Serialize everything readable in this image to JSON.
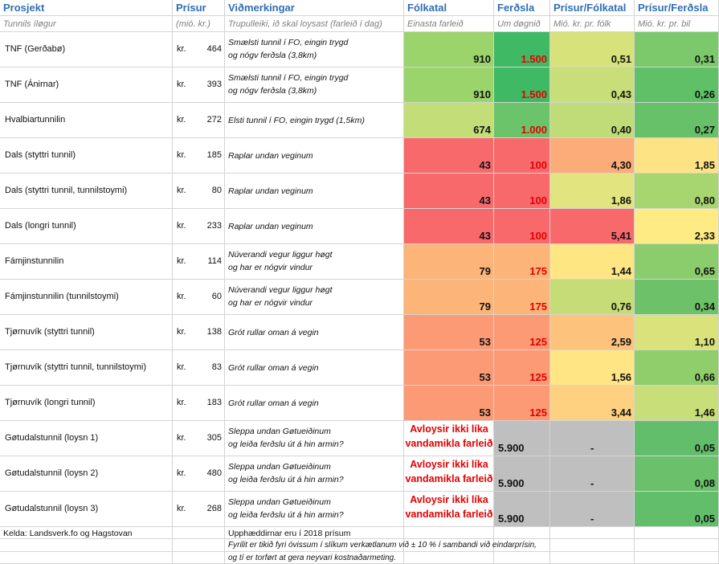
{
  "header": [
    "Prosjekt",
    "Prísur",
    "Viðmerkingar",
    "Fólkatal",
    "Ferðsla",
    "Prísur/Fólkatal",
    "Prísur/Ferðsla"
  ],
  "subheader": [
    "Tunnils íløgur",
    "(mió. kr.)",
    "Trupulleiki, ið skal loysast (farleið í dag)",
    "Einasta farleið",
    "Um døgnið",
    "Mió. kr. pr. fólk",
    "Mió. kr. pr. bil"
  ],
  "rows": [
    {
      "name": "TNF (Gerðabø)",
      "currency": "kr.",
      "price": "464",
      "note": [
        "Smælsti tunnil í FO, eingin trygd",
        "og nógv ferðsla (3,8km)"
      ],
      "folk": "910",
      "traffic": "1.500",
      "per_person": "0,51",
      "per_vehicle": "0,31"
    },
    {
      "name": "TNF (Ánirnar)",
      "currency": "kr.",
      "price": "393",
      "note": [
        "Smælsti tunnil í FO, eingin trygd",
        "og nógv ferðsla (3,8km)"
      ],
      "folk": "910",
      "traffic": "1.500",
      "per_person": "0,43",
      "per_vehicle": "0,26"
    },
    {
      "name": "Hvalbiartunnilin",
      "currency": "kr.",
      "price": "272",
      "note": [
        "Elsti tunnil í FO, eingin trygd (1,5km)"
      ],
      "folk": "674",
      "traffic": "1.000",
      "per_person": "0,40",
      "per_vehicle": "0,27"
    },
    {
      "name": "Dals (styttri tunnil)",
      "currency": "kr.",
      "price": "185",
      "note": [
        "Raplar undan veginum"
      ],
      "folk": "43",
      "traffic": "100",
      "per_person": "4,30",
      "per_vehicle": "1,85"
    },
    {
      "name": "Dals (styttri tunnil, tunnilstoymi)",
      "currency": "kr.",
      "price": "80",
      "note": [
        "Raplar undan veginum"
      ],
      "folk": "43",
      "traffic": "100",
      "per_person": "1,86",
      "per_vehicle": "0,80"
    },
    {
      "name": "Dals (longri tunnil)",
      "currency": "kr.",
      "price": "233",
      "note": [
        "Raplar undan veginum"
      ],
      "folk": "43",
      "traffic": "100",
      "per_person": "5,41",
      "per_vehicle": "2,33"
    },
    {
      "name": "Fámjinstunnilin",
      "currency": "kr.",
      "price": "114",
      "note": [
        "Núverandi vegur liggur høgt",
        "og har er nógvir vindur"
      ],
      "folk": "79",
      "traffic": "175",
      "per_person": "1,44",
      "per_vehicle": "0,65"
    },
    {
      "name": "Fámjinstunnilin (tunnilstoymi)",
      "currency": "kr.",
      "price": "60",
      "note": [
        "Núverandi vegur liggur høgt",
        "og har er nógvir vindur"
      ],
      "folk": "79",
      "traffic": "175",
      "per_person": "0,76",
      "per_vehicle": "0,34"
    },
    {
      "name": "Tjørnuvík (styttri tunnil)",
      "currency": "kr.",
      "price": "138",
      "note": [
        "Grót rullar oman á vegin"
      ],
      "folk": "53",
      "traffic": "125",
      "per_person": "2,59",
      "per_vehicle": "1,10"
    },
    {
      "name": "Tjørnuvík (styttri tunnil, tunnilstoymi)",
      "currency": "kr.",
      "price": "83",
      "note": [
        "Grót rullar oman á vegin"
      ],
      "folk": "53",
      "traffic": "125",
      "per_person": "1,56",
      "per_vehicle": "0,66"
    },
    {
      "name": "Tjørnuvík (longri tunnil)",
      "currency": "kr.",
      "price": "183",
      "note": [
        "Grót rullar oman á vegin"
      ],
      "folk": "53",
      "traffic": "125",
      "per_person": "3,44",
      "per_vehicle": "1,46"
    },
    {
      "name": "Gøtudalstunnil (loysn 1)",
      "currency": "kr.",
      "price": "305",
      "note": [
        "Sleppa undan Gøtueiðinum",
        "og leiða ferðslu út á hin armin?"
      ],
      "folk": [
        "Avloysir ikki líka",
        "vandamikla farleið"
      ],
      "traffic": "5.900",
      "per_person": "-",
      "per_vehicle": "0,05"
    },
    {
      "name": "Gøtudalstunnil (loysn 2)",
      "currency": "kr.",
      "price": "480",
      "note": [
        "Sleppa undan Gøtueiðinum",
        "og leiða ferðslu út á hin armin?"
      ],
      "folk": [
        "Avloysir ikki líka",
        "vandamikla farleið"
      ],
      "traffic": "5.900",
      "per_person": "-",
      "per_vehicle": "0,08"
    },
    {
      "name": "Gøtudalstunnil (loysn 3)",
      "currency": "kr.",
      "price": "268",
      "note": [
        "Sleppa undan Gøtueiðinum",
        "og leiða ferðslu út á hin armin?"
      ],
      "folk": [
        "Avloysir ikki líka",
        "vandamikla farleið"
      ],
      "traffic": "5.900",
      "per_person": "-",
      "per_vehicle": "0,05"
    }
  ],
  "footer": {
    "source": "Kelda: Landsverk.fo og Hagstovan",
    "prices": "Upphæddirnar eru í 2018 prísum",
    "note": [
      "Fyrilit er tikið fyri óvissum í slíkum verkætlanum við ± 10 % í sambandi við eindarprísin,",
      "og tí er torført at gera neyvari kostnaðarmeting."
    ]
  }
}
